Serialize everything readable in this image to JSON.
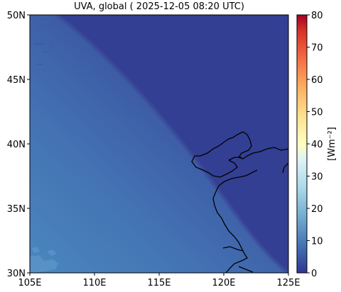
{
  "title": "UVA, global ( 2025-12-05 08:20 UTC)",
  "map": {
    "x_ticks": [
      "105E",
      "110E",
      "115E",
      "120E",
      "125E"
    ],
    "y_ticks": [
      "50N",
      "45N",
      "40N",
      "35N",
      "30N"
    ],
    "lon_range": [
      105,
      125
    ],
    "lat_range": [
      30,
      50
    ],
    "field_colors": {
      "low": "#333f92",
      "mid": "#4065ad",
      "high": "#4a84bc"
    }
  },
  "colorbar": {
    "label": "[Wm⁻²]",
    "ticks": [
      "80",
      "70",
      "60",
      "50",
      "40",
      "30",
      "20",
      "10",
      "0"
    ],
    "range": [
      0,
      80
    ],
    "colormap": "RdYlBu_r"
  }
}
